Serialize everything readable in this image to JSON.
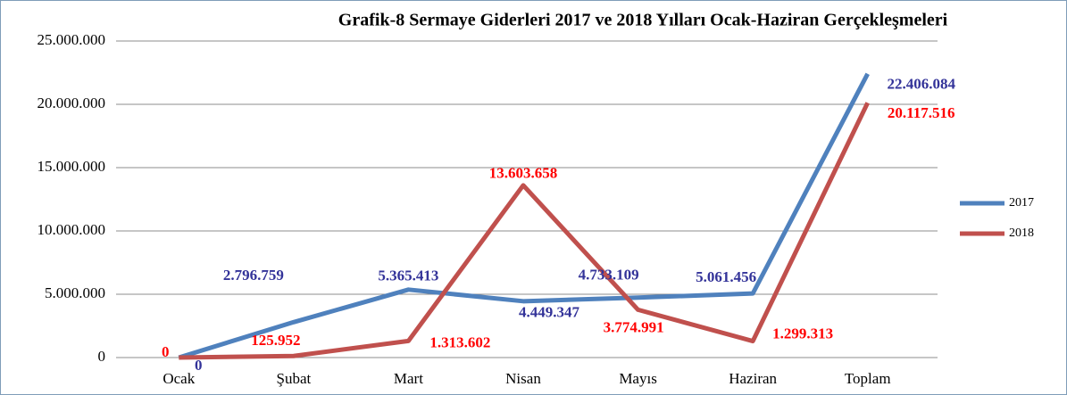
{
  "chart_data": {
    "type": "line",
    "title": "Grafik-8  Sermaye Giderleri 2017 ve 2018 Yılları Ocak-Haziran Gerçekleşmeleri",
    "categories": [
      "Ocak",
      "Şubat",
      "Mart",
      "Nisan",
      "Mayıs",
      "Haziran",
      "Toplam"
    ],
    "series": [
      {
        "name": "2017",
        "color": "#4f81bd",
        "label_color": "#333399",
        "values": [
          0,
          2796759,
          5365413,
          4449347,
          4733109,
          5061456,
          22406084
        ],
        "value_labels": [
          "0",
          "2.796.759",
          "5.365.413",
          "4.449.347",
          "4.733.109",
          "5.061.456",
          "22.406.084"
        ]
      },
      {
        "name": "2018",
        "color": "#c0504d",
        "label_color": "#ff0000",
        "values": [
          0,
          125952,
          1313602,
          13603658,
          3774991,
          1299313,
          20117516
        ],
        "value_labels": [
          "0",
          "125.952",
          "1.313.602",
          "13.603.658",
          "3.774.991",
          "1.299.313",
          "20.117.516"
        ]
      }
    ],
    "ylim": [
      0,
      25000000
    ],
    "yticks": [
      0,
      {
        "value": 5000000,
        "label": "5.000.000"
      },
      {
        "value": 10000000,
        "label": "10.000.000"
      },
      {
        "value": 15000000,
        "label": "15.000.000"
      },
      {
        "value": 20000000,
        "label": "20.000.000"
      },
      {
        "value": 25000000,
        "label": "25.000.000"
      }
    ],
    "grid": true,
    "legend": "right"
  }
}
